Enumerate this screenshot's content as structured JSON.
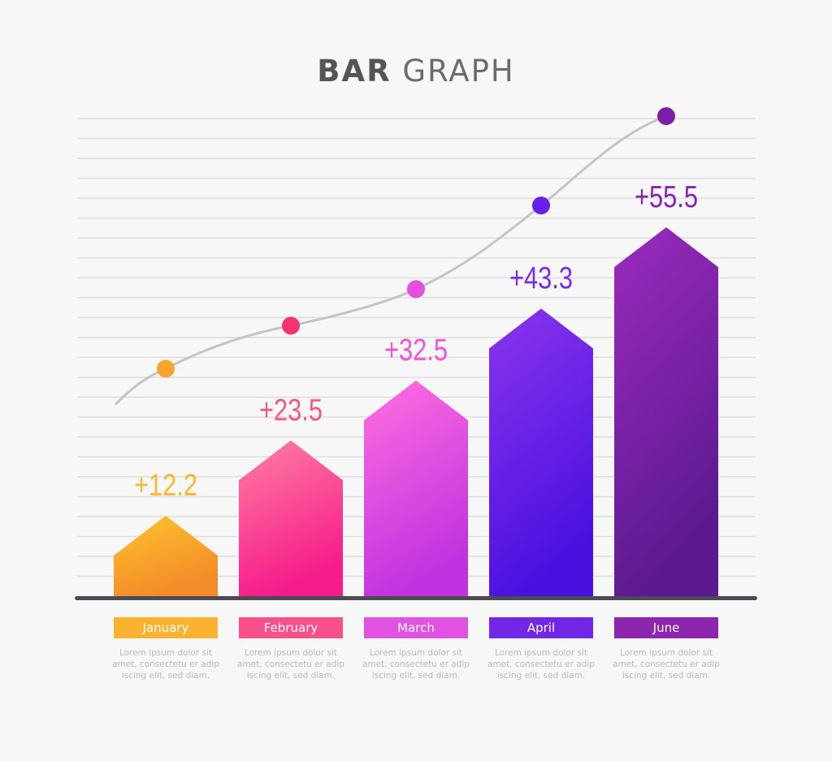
{
  "title": {
    "bold": "BAR",
    "light": "GRAPH"
  },
  "chart_data": {
    "type": "bar",
    "categories": [
      "January",
      "February",
      "March",
      "April",
      "June"
    ],
    "values": [
      12.2,
      23.5,
      32.5,
      43.3,
      55.5
    ],
    "value_labels": [
      "+12.2",
      "+23.5",
      "+32.5",
      "+43.3",
      "+55.5"
    ],
    "trend_line": true,
    "grid": true,
    "legend": "none",
    "colors": [
      "#f7a924",
      "#f7277f",
      "#e054e6",
      "#6a1fe6",
      "#8a22b0"
    ]
  },
  "descriptions": [
    [
      "Lorem ipsum dolor sit",
      "amet, consectetu er adip",
      "iscing elit, sed diam."
    ],
    [
      "Lorem ipsum dolor sit",
      "amet, consectetu er adip",
      "iscing elit, sed diam."
    ],
    [
      "Lorem ipsum dolor sit",
      "amet, consectetu er adip",
      "iscing elit, sed diam."
    ],
    [
      "Lorem ipsum dolor sit",
      "amet, consectetu er adip",
      "iscing elit, sed diam."
    ],
    [
      "Lorem ipsum dolor sit",
      "amet, consectetu er adip",
      "iscing elit, sed diam."
    ]
  ]
}
